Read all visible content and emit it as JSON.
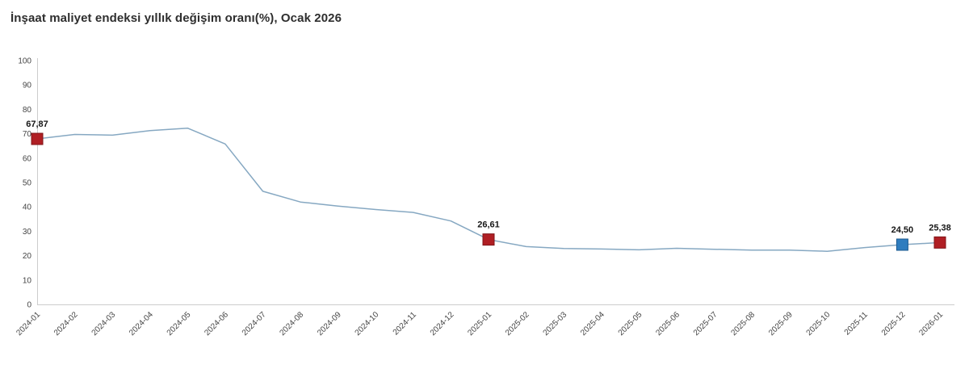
{
  "title": "İnşaat maliyet endeksi yıllık değişim oranı(%), Ocak 2026",
  "colors": {
    "title_text": "#2e2e2e",
    "axis_line": "#cccccc",
    "tick_text": "#454545",
    "series_line": "#86a8c2",
    "marker_red_fill": "#b01f24",
    "marker_red_border": "#801418",
    "marker_blue_fill": "#2f7dbf",
    "marker_blue_border": "#1c5a90",
    "point_label_text": "#161616"
  },
  "chart_data": {
    "type": "line",
    "title": "İnşaat maliyet endeksi yıllık değişim oranı(%), Ocak 2026",
    "xlabel": "",
    "ylabel": "",
    "ylim": [
      0,
      100
    ],
    "y_tick_step": 10,
    "grid": false,
    "legend_position": "none",
    "x_label_rotation": -45,
    "series_name": "İnşaat maliyet endeksi yıllık değişim oranı (%)",
    "categories": [
      "2024-01",
      "2024-02",
      "2024-03",
      "2024-04",
      "2024-05",
      "2024-06",
      "2024-07",
      "2024-08",
      "2024-09",
      "2024-10",
      "2024-11",
      "2024-12",
      "2025-01",
      "2025-02",
      "2025-03",
      "2025-04",
      "2025-05",
      "2025-06",
      "2025-07",
      "2025-08",
      "2025-09",
      "2025-10",
      "2025-11",
      "2025-12",
      "2026-01"
    ],
    "values": [
      67.87,
      69.7,
      69.4,
      71.3,
      72.3,
      65.8,
      46.4,
      42.0,
      40.3,
      38.9,
      37.7,
      34.2,
      26.61,
      23.7,
      22.9,
      22.7,
      22.4,
      23.0,
      22.6,
      22.3,
      22.3,
      21.8,
      23.3,
      24.5,
      25.38
    ],
    "labeled_points": [
      {
        "index": 0,
        "x": "2024-01",
        "value": 67.87,
        "label": "67,87",
        "marker": "red"
      },
      {
        "index": 12,
        "x": "2025-01",
        "value": 26.61,
        "label": "26,61",
        "marker": "red"
      },
      {
        "index": 23,
        "x": "2025-12",
        "value": 24.5,
        "label": "24,50",
        "marker": "blue"
      },
      {
        "index": 24,
        "x": "2026-01",
        "value": 25.38,
        "label": "25,38",
        "marker": "red"
      }
    ]
  }
}
